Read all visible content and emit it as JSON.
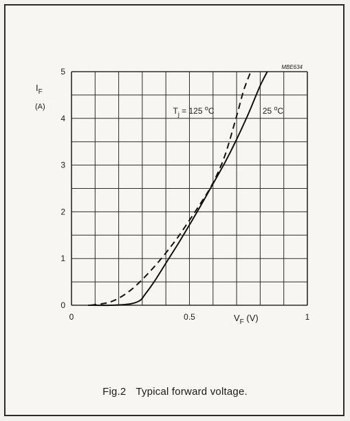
{
  "chart_data": {
    "type": "line",
    "ref_code": "MBE634",
    "xlabel_main": "V",
    "xlabel_sub": "F",
    "xlabel_unit": " (V)",
    "ylabel_main": "I",
    "ylabel_sub": "F",
    "ylabel_unit": "(A)",
    "xlim": [
      0,
      1
    ],
    "ylim": [
      0,
      5
    ],
    "x_tick_labels": [
      {
        "value": 0,
        "label": "0"
      },
      {
        "value": 0.5,
        "label": "0.5"
      },
      {
        "value": 1,
        "label": "1"
      }
    ],
    "y_tick_labels": [
      {
        "value": 0,
        "label": "0"
      },
      {
        "value": 1,
        "label": "1"
      },
      {
        "value": 2,
        "label": "2"
      },
      {
        "value": 3,
        "label": "3"
      },
      {
        "value": 4,
        "label": "4"
      },
      {
        "value": 5,
        "label": "5"
      }
    ],
    "grid_x_step": 0.1,
    "grid_y_step": 0.5,
    "series": [
      {
        "id": "tj125",
        "style": "dashed",
        "label_main": "T",
        "label_sub": "j",
        "label_rest": " = 125 ",
        "label_deg": "o",
        "label_unit": "C",
        "label_pos": {
          "x": 0.43,
          "y": 4.1
        },
        "x": [
          0.08,
          0.15,
          0.2,
          0.25,
          0.3,
          0.35,
          0.4,
          0.45,
          0.5,
          0.55,
          0.6,
          0.65,
          0.7,
          0.73,
          0.76
        ],
        "y": [
          0.0,
          0.05,
          0.15,
          0.32,
          0.55,
          0.82,
          1.12,
          1.45,
          1.82,
          2.2,
          2.62,
          3.2,
          4.05,
          4.6,
          5.0
        ]
      },
      {
        "id": "t25",
        "style": "solid",
        "label_main": "25 ",
        "label_deg": "o",
        "label_unit": "C",
        "label_pos": {
          "x": 0.81,
          "y": 4.1
        },
        "x": [
          0.07,
          0.17,
          0.25,
          0.29,
          0.31,
          0.35,
          0.4,
          0.45,
          0.5,
          0.55,
          0.6,
          0.65,
          0.7,
          0.75,
          0.8,
          0.83
        ],
        "y": [
          0.0,
          0.0,
          0.03,
          0.1,
          0.22,
          0.5,
          0.9,
          1.3,
          1.72,
          2.15,
          2.6,
          3.05,
          3.55,
          4.1,
          4.7,
          5.0
        ]
      }
    ]
  },
  "caption": {
    "number": "Fig.2",
    "text": "Typical forward voltage."
  }
}
